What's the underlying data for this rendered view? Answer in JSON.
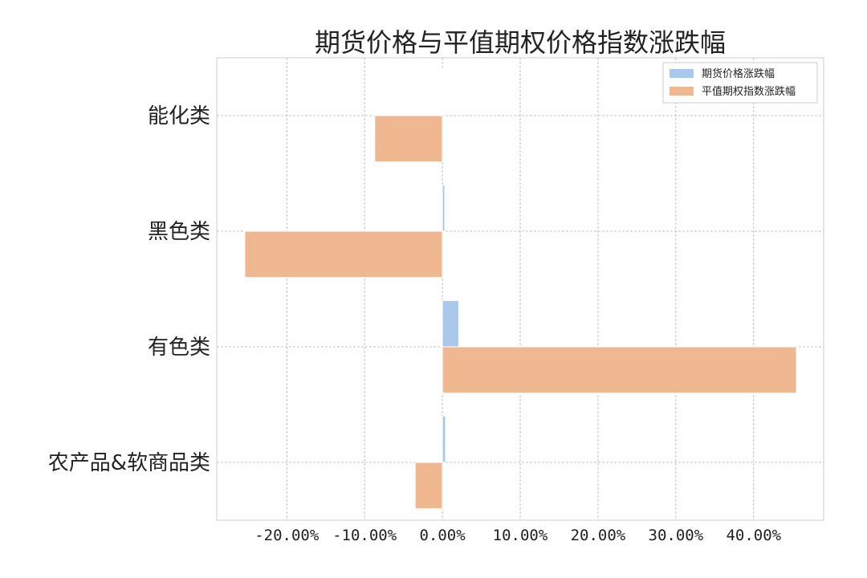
{
  "chart_data": {
    "type": "bar",
    "orientation": "horizontal",
    "title": "期货价格与平值期权价格指数涨跌幅",
    "categories": [
      "能化类",
      "黑色类",
      "有色类",
      "农产品&软商品类"
    ],
    "series": [
      {
        "name": "期货价格涨跌幅",
        "color": "#a9c8ec",
        "values": [
          0.0,
          0.3,
          2.1,
          0.4
        ]
      },
      {
        "name": "平值期权指数涨跌幅",
        "color": "#f0b890",
        "values": [
          -8.7,
          -25.4,
          45.5,
          -3.5
        ]
      }
    ],
    "xticks": [
      -20,
      -10,
      0,
      10,
      20,
      30,
      40
    ],
    "xtick_labels": [
      "-20.00%",
      "-10.00%",
      "0.00%",
      "10.00%",
      "20.00%",
      "30.00%",
      "40.00%"
    ],
    "xlim": [
      -29,
      49
    ],
    "grid": true,
    "legend_position": "top-right"
  }
}
